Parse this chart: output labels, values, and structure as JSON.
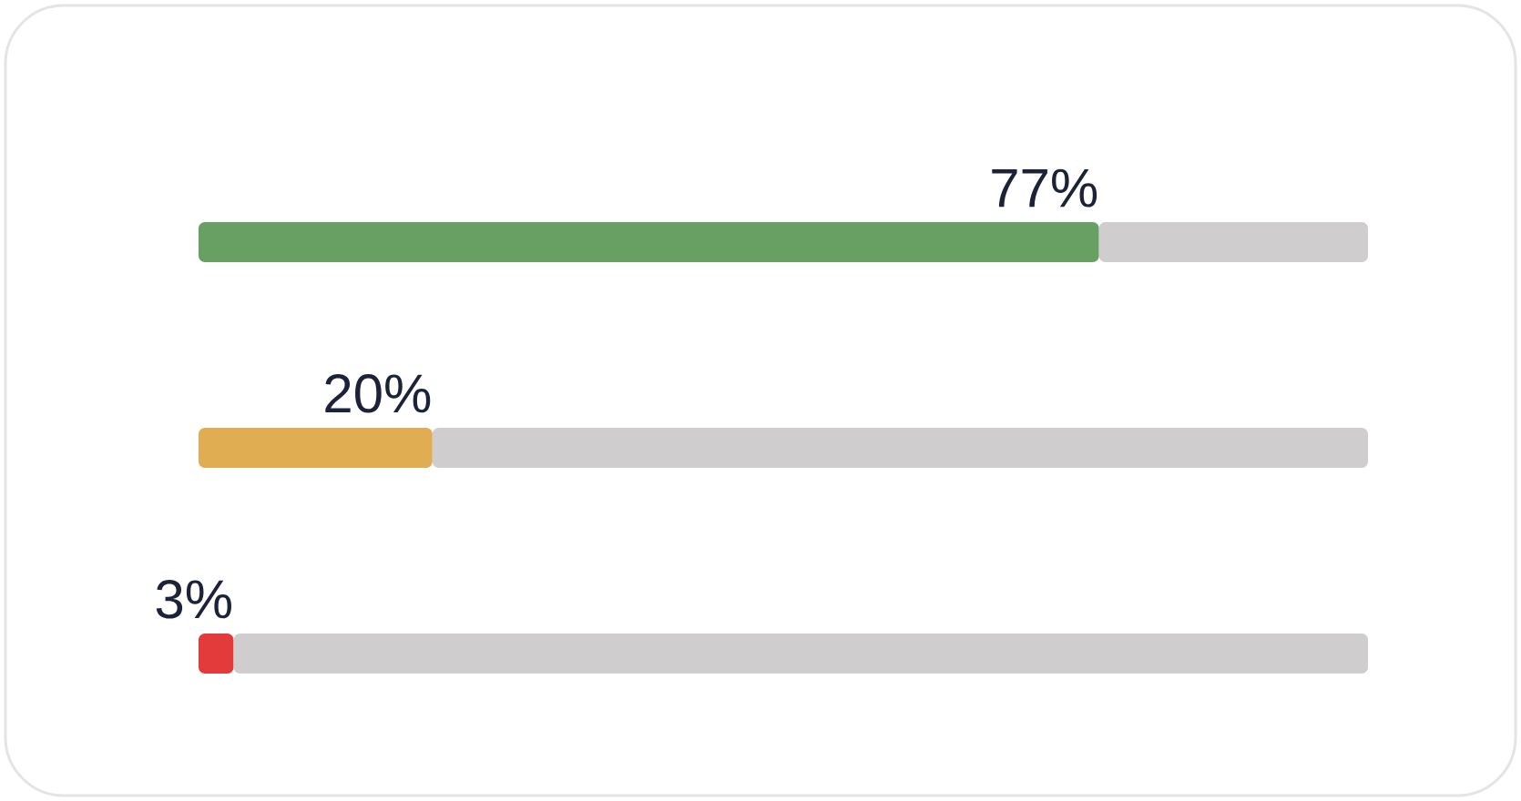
{
  "chart_data": {
    "type": "bar",
    "orientation": "horizontal",
    "stacked": true,
    "categories": [
      null,
      null,
      null
    ],
    "series": [
      {
        "colors": [
          "#68a063",
          "#e0ad52",
          "#e33b3b"
        ],
        "values": [
          77,
          20,
          3
        ],
        "value_labels": [
          "77%",
          "20%",
          "3%"
        ]
      },
      {
        "color": "#cfcdce",
        "values": [
          23,
          80,
          97
        ]
      }
    ],
    "xlim": [
      0,
      100
    ],
    "tick_labels": false
  }
}
